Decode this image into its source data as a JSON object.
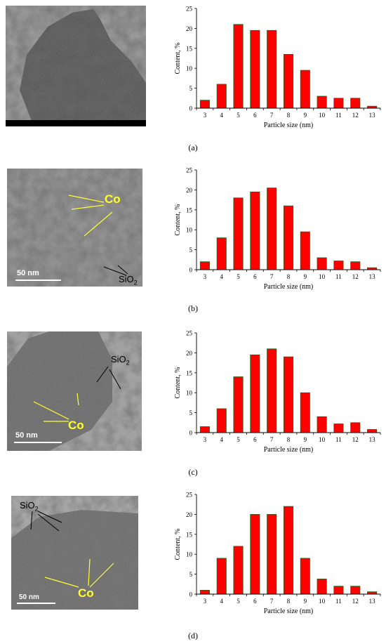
{
  "panels": [
    {
      "label": "(a)",
      "micrograph": {
        "scale_bar": "",
        "co_label": "",
        "sio2_label": "",
        "sio2_sub": ""
      },
      "chart_data": {
        "type": "bar",
        "categories": [
          "3",
          "4",
          "5",
          "6",
          "7",
          "8",
          "9",
          "10",
          "11",
          "12",
          "13"
        ],
        "values": [
          2,
          6,
          21,
          19.5,
          19.5,
          13.5,
          9.5,
          3,
          2.5,
          2.5,
          0.5
        ],
        "ylabel": "Content, %",
        "xlabel": "Particle size (nm)",
        "ylim": [
          0,
          25
        ],
        "yticks": [
          0,
          5,
          10,
          15,
          20,
          25
        ],
        "bar_color": "#ff0000",
        "bar_edge": "#1a5e1a"
      }
    },
    {
      "label": "(b)",
      "micrograph": {
        "scale_bar": "50 nm",
        "co_label": "Co",
        "sio2_label": "SiO",
        "sio2_sub": "2"
      },
      "chart_data": {
        "type": "bar",
        "categories": [
          "3",
          "4",
          "5",
          "6",
          "7",
          "8",
          "9",
          "10",
          "11",
          "12",
          "13"
        ],
        "values": [
          2,
          8,
          18,
          19.5,
          20.5,
          16,
          9.5,
          3,
          2.2,
          2,
          0.5
        ],
        "ylabel": "Content, %",
        "xlabel": "Particle size (nm)",
        "ylim": [
          0,
          25
        ],
        "yticks": [
          0,
          5,
          10,
          15,
          20,
          25
        ],
        "bar_color": "#ff0000",
        "bar_edge": "#1a5e1a"
      }
    },
    {
      "label": "(c)",
      "micrograph": {
        "scale_bar": "50 nm",
        "co_label": "Co",
        "sio2_label": "SiO",
        "sio2_sub": "2"
      },
      "chart_data": {
        "type": "bar",
        "categories": [
          "3",
          "4",
          "5",
          "6",
          "7",
          "8",
          "9",
          "10",
          "11",
          "12",
          "13"
        ],
        "values": [
          1.5,
          6,
          14,
          19.5,
          21,
          19,
          10,
          4,
          2.2,
          2.5,
          0.8
        ],
        "ylabel": "Content, %",
        "xlabel": "Particle size (nm)",
        "ylim": [
          0,
          25
        ],
        "yticks": [
          0,
          5,
          10,
          15,
          20,
          25
        ],
        "bar_color": "#ff0000",
        "bar_edge": "#1a5e1a"
      }
    },
    {
      "label": "(d)",
      "micrograph": {
        "scale_bar": "50 nm",
        "co_label": "Co",
        "sio2_label": "SiO",
        "sio2_sub": "2"
      },
      "chart_data": {
        "type": "bar",
        "categories": [
          "3",
          "4",
          "5",
          "6",
          "7",
          "8",
          "9",
          "10",
          "11",
          "12",
          "13"
        ],
        "values": [
          1,
          9,
          12,
          20,
          20,
          22,
          9,
          3.8,
          2,
          2,
          0.6
        ],
        "ylabel": "Content, %",
        "xlabel": "Particle size (nm)",
        "ylim": [
          0,
          25
        ],
        "yticks": [
          0,
          5,
          10,
          15,
          20,
          25
        ],
        "bar_color": "#ff0000",
        "bar_edge": "#1a5e1a"
      }
    }
  ]
}
